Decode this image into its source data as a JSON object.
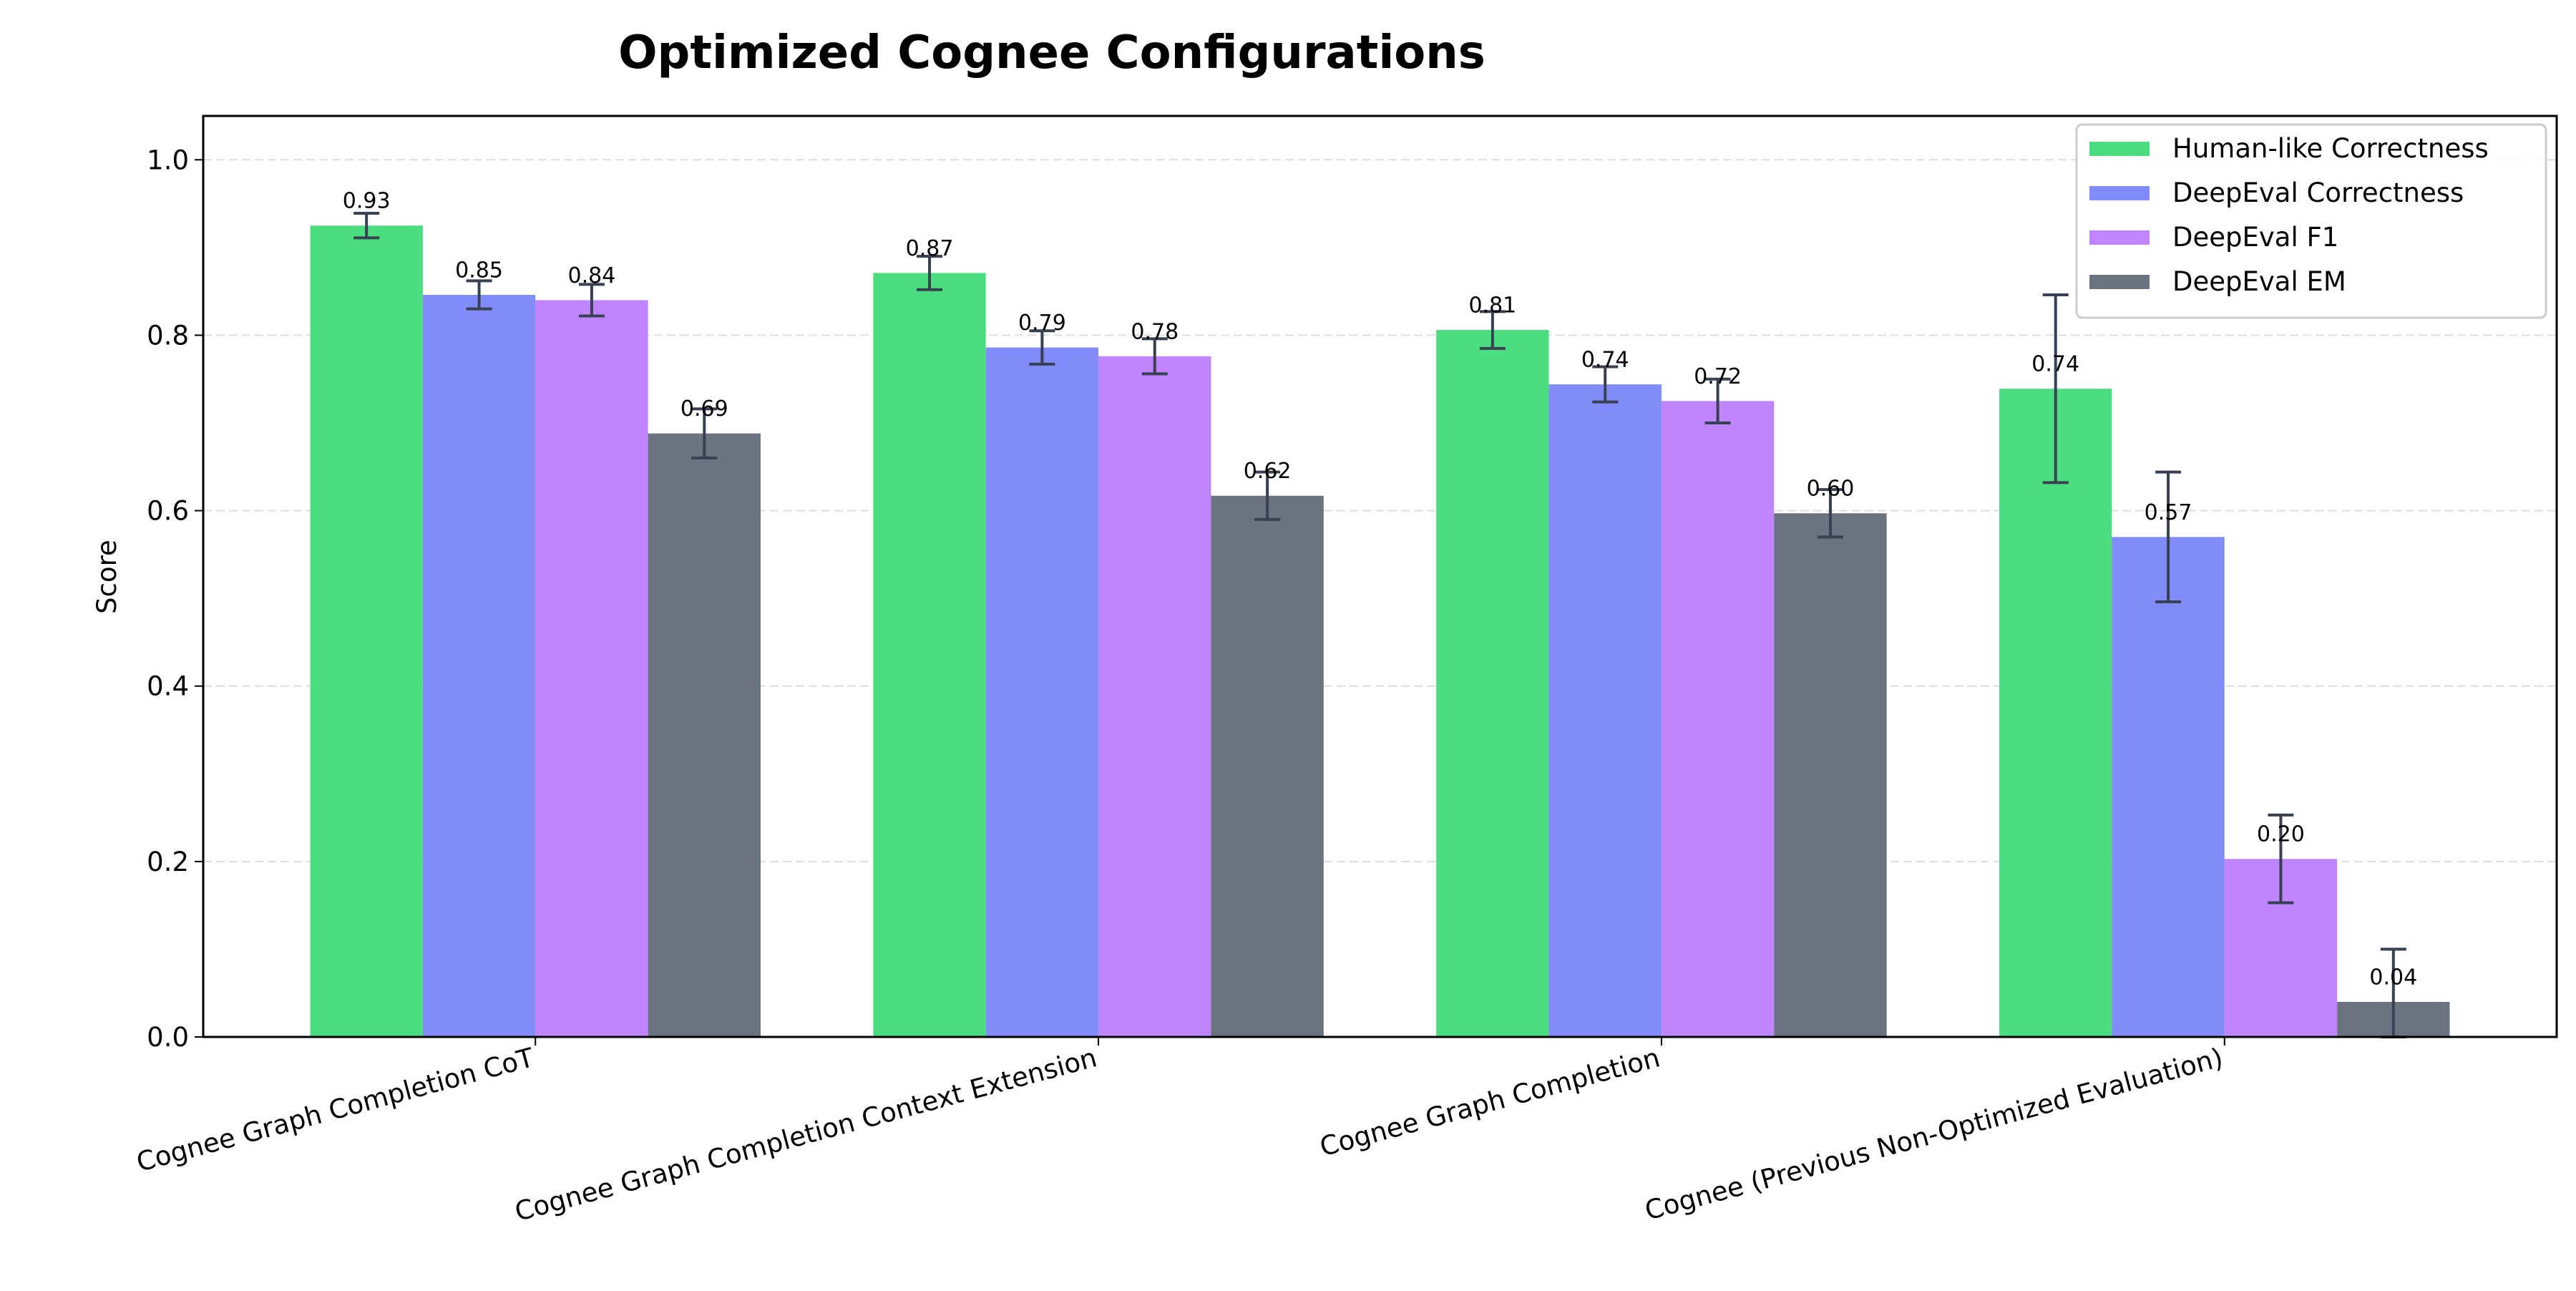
{
  "chart_data": {
    "type": "bar",
    "title": "Optimized Cognee Configurations",
    "xlabel": "",
    "ylabel": "Score",
    "ylim": [
      0,
      1.05
    ],
    "yticks": [
      "0.0",
      "0.2",
      "0.4",
      "0.6",
      "0.8",
      "1.0"
    ],
    "grid": "y dashed",
    "legend_position": "top-right",
    "categories": [
      "Cognee Graph Completion CoT",
      "Cognee Graph Completion Context Extension",
      "Cognee Graph Completion",
      "Cognee (Previous Non-Optimized Evaluation)"
    ],
    "series": [
      {
        "name": "Human-like Correctness",
        "color": "#4ade80",
        "values": [
          0.925,
          0.871,
          0.806,
          0.739
        ],
        "errors": [
          0.014,
          0.019,
          0.021,
          0.107
        ],
        "labels": [
          "0.93",
          "0.87",
          "0.81",
          "0.74"
        ]
      },
      {
        "name": "DeepEval Correctness",
        "color": "#818cf8",
        "values": [
          0.846,
          0.786,
          0.744,
          0.57
        ],
        "errors": [
          0.016,
          0.019,
          0.02,
          0.074
        ],
        "labels": [
          "0.85",
          "0.79",
          "0.74",
          "0.57"
        ]
      },
      {
        "name": "DeepEval F1",
        "color": "#c084fc",
        "values": [
          0.84,
          0.776,
          0.725,
          0.203
        ],
        "errors": [
          0.018,
          0.02,
          0.025,
          0.05
        ],
        "labels": [
          "0.84",
          "0.78",
          "0.72",
          "0.20"
        ]
      },
      {
        "name": "DeepEval EM",
        "color": "#6b7280",
        "values": [
          0.688,
          0.617,
          0.597,
          0.04
        ],
        "errors": [
          0.028,
          0.027,
          0.027,
          0.06
        ],
        "labels": [
          "0.69",
          "0.62",
          "0.60",
          "0.04"
        ]
      }
    ],
    "error_bar_color": "#374151"
  }
}
